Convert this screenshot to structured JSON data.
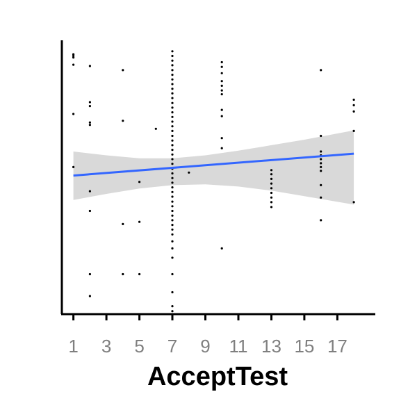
{
  "chart_data": {
    "type": "scatter",
    "title": "",
    "xlabel": "AcceptTest",
    "ylabel": "",
    "xlim": [
      0.3,
      19.3
    ],
    "ylim": [
      0,
      100
    ],
    "x_ticks": [
      "1",
      "3",
      "5",
      "7",
      "9",
      "11",
      "13",
      "15",
      "17"
    ],
    "x_tick_values": [
      1,
      3,
      5,
      7,
      9,
      11,
      13,
      15,
      17
    ],
    "y_ticks": [],
    "grid": false,
    "legend": "none",
    "points": [
      {
        "x": 1,
        "y": 94.3
      },
      {
        "x": 1,
        "y": 94.9
      },
      {
        "x": 1,
        "y": 93.7
      },
      {
        "x": 1,
        "y": 91.1
      },
      {
        "x": 1,
        "y": 73.1
      },
      {
        "x": 1,
        "y": 53.7
      },
      {
        "x": 2,
        "y": 90.6
      },
      {
        "x": 2,
        "y": 77.4
      },
      {
        "x": 2,
        "y": 76.0
      },
      {
        "x": 2,
        "y": 70.0
      },
      {
        "x": 2,
        "y": 69.1
      },
      {
        "x": 2,
        "y": 44.9
      },
      {
        "x": 2,
        "y": 37.7
      },
      {
        "x": 2,
        "y": 14.6
      },
      {
        "x": 2,
        "y": 6.6
      },
      {
        "x": 4,
        "y": 89.1
      },
      {
        "x": 4,
        "y": 70.6
      },
      {
        "x": 4,
        "y": 32.9
      },
      {
        "x": 4,
        "y": 14.6
      },
      {
        "x": 5,
        "y": 48.3
      },
      {
        "x": 5,
        "y": 33.7
      },
      {
        "x": 5,
        "y": 14.6
      },
      {
        "x": 6,
        "y": 67.7
      },
      {
        "x": 7,
        "y": 96.0
      },
      {
        "x": 7,
        "y": 94.3
      },
      {
        "x": 7,
        "y": 92.6
      },
      {
        "x": 7,
        "y": 90.9
      },
      {
        "x": 7,
        "y": 89.1
      },
      {
        "x": 7,
        "y": 87.4
      },
      {
        "x": 7,
        "y": 85.7
      },
      {
        "x": 7,
        "y": 84.0
      },
      {
        "x": 7,
        "y": 82.3
      },
      {
        "x": 7,
        "y": 80.6
      },
      {
        "x": 7,
        "y": 78.9
      },
      {
        "x": 7,
        "y": 77.1
      },
      {
        "x": 7,
        "y": 75.4
      },
      {
        "x": 7,
        "y": 73.7
      },
      {
        "x": 7,
        "y": 72.0
      },
      {
        "x": 7,
        "y": 70.3
      },
      {
        "x": 7,
        "y": 68.6
      },
      {
        "x": 7,
        "y": 66.9
      },
      {
        "x": 7,
        "y": 65.1
      },
      {
        "x": 7,
        "y": 63.4
      },
      {
        "x": 7,
        "y": 61.7
      },
      {
        "x": 7,
        "y": 60.0
      },
      {
        "x": 7,
        "y": 58.3
      },
      {
        "x": 7,
        "y": 56.6
      },
      {
        "x": 7,
        "y": 54.9
      },
      {
        "x": 7,
        "y": 53.1
      },
      {
        "x": 7,
        "y": 51.4
      },
      {
        "x": 7,
        "y": 49.7
      },
      {
        "x": 7,
        "y": 48.0
      },
      {
        "x": 7,
        "y": 46.3
      },
      {
        "x": 7,
        "y": 44.6
      },
      {
        "x": 7,
        "y": 42.9
      },
      {
        "x": 7,
        "y": 41.1
      },
      {
        "x": 7,
        "y": 39.4
      },
      {
        "x": 7,
        "y": 37.7
      },
      {
        "x": 7,
        "y": 36.0
      },
      {
        "x": 7,
        "y": 34.3
      },
      {
        "x": 7,
        "y": 32.6
      },
      {
        "x": 7,
        "y": 30.9
      },
      {
        "x": 7,
        "y": 29.1
      },
      {
        "x": 7,
        "y": 26.6
      },
      {
        "x": 7,
        "y": 24.0
      },
      {
        "x": 7,
        "y": 20.6
      },
      {
        "x": 7,
        "y": 14.6
      },
      {
        "x": 7,
        "y": 8.0
      },
      {
        "x": 7,
        "y": 2.9
      },
      {
        "x": 7,
        "y": 1.1
      },
      {
        "x": 8,
        "y": 51.7
      },
      {
        "x": 10,
        "y": 92.0
      },
      {
        "x": 10,
        "y": 90.3
      },
      {
        "x": 10,
        "y": 88.0
      },
      {
        "x": 10,
        "y": 85.1
      },
      {
        "x": 10,
        "y": 83.4
      },
      {
        "x": 10,
        "y": 81.7
      },
      {
        "x": 10,
        "y": 80.3
      },
      {
        "x": 10,
        "y": 74.6
      },
      {
        "x": 10,
        "y": 72.3
      },
      {
        "x": 10,
        "y": 64.3
      },
      {
        "x": 10,
        "y": 60.6
      },
      {
        "x": 10,
        "y": 24.0
      },
      {
        "x": 13,
        "y": 52.6
      },
      {
        "x": 13,
        "y": 51.1
      },
      {
        "x": 13,
        "y": 49.4
      },
      {
        "x": 13,
        "y": 47.7
      },
      {
        "x": 13,
        "y": 46.0
      },
      {
        "x": 13,
        "y": 44.3
      },
      {
        "x": 13,
        "y": 42.6
      },
      {
        "x": 13,
        "y": 40.9
      },
      {
        "x": 13,
        "y": 39.1
      },
      {
        "x": 16,
        "y": 89.1
      },
      {
        "x": 16,
        "y": 65.1
      },
      {
        "x": 16,
        "y": 59.4
      },
      {
        "x": 16,
        "y": 58.0
      },
      {
        "x": 16,
        "y": 56.6
      },
      {
        "x": 16,
        "y": 55.1
      },
      {
        "x": 16,
        "y": 53.7
      },
      {
        "x": 16,
        "y": 52.3
      },
      {
        "x": 16,
        "y": 47.1
      },
      {
        "x": 16,
        "y": 42.6
      },
      {
        "x": 16,
        "y": 34.3
      },
      {
        "x": 18,
        "y": 78.3
      },
      {
        "x": 18,
        "y": 76.3
      },
      {
        "x": 18,
        "y": 74.0
      },
      {
        "x": 18,
        "y": 66.9
      },
      {
        "x": 18,
        "y": 40.9
      }
    ],
    "trend": {
      "method": "linear",
      "color": "#3366ff",
      "x": [
        1,
        18
      ],
      "y": [
        50.6,
        58.6
      ]
    },
    "ribbon": {
      "color": "#d9d9d9",
      "x": [
        1,
        3,
        5,
        7,
        9,
        11,
        13,
        15,
        18
      ],
      "lower": [
        41.7,
        43.9,
        45.9,
        47.1,
        47.4,
        46.6,
        45.1,
        43.1,
        40.0
      ],
      "upper": [
        59.4,
        58.0,
        56.9,
        56.9,
        58.0,
        59.7,
        61.7,
        63.7,
        67.1
      ]
    },
    "colors": {
      "points": "#000000",
      "axis": "#000000",
      "tick_label": "#7f7f7f"
    }
  }
}
